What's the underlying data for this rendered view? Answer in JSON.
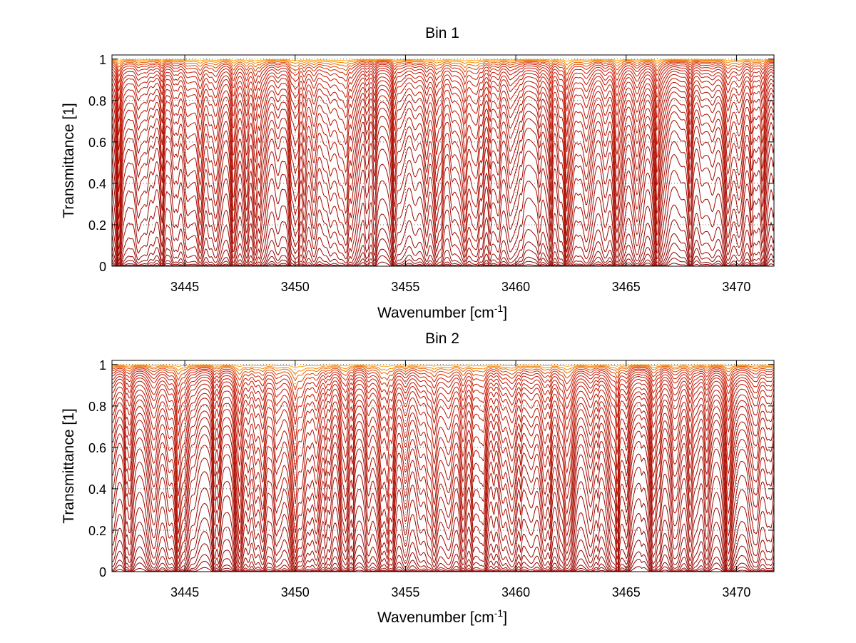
{
  "chart_data": [
    {
      "type": "line",
      "title": "Bin 1",
      "xlabel_main": "Wavenumber [cm",
      "xlabel_sup": "-1",
      "xlabel_end": "]",
      "ylabel": "Transmittance [1]",
      "xlim": [
        3441.7,
        3471.7
      ],
      "ylim": [
        0,
        1.02
      ],
      "xticks": [
        3445,
        3450,
        3455,
        3460,
        3465,
        3470
      ],
      "yticks": [
        0,
        0.2,
        0.4,
        0.6,
        0.8,
        1
      ],
      "ytick_labels": [
        "0",
        "0.2",
        "0.4",
        "0.6",
        "0.8",
        "1"
      ],
      "grid": "dotted",
      "legend": "none",
      "colors": {
        "low_transmittance": "#8b0000",
        "mid": "#cc1800",
        "high_transmittance": "#ffa500",
        "grid": "#666666"
      },
      "series_baselines": [
        0.003,
        0.012,
        0.025,
        0.05,
        0.08,
        0.13,
        0.19,
        0.27,
        0.35,
        0.43,
        0.5,
        0.56,
        0.62,
        0.67,
        0.71,
        0.75,
        0.79,
        0.82,
        0.85,
        0.875,
        0.9,
        0.92,
        0.935,
        0.95,
        0.962,
        0.972,
        0.98,
        0.986,
        0.991,
        0.995,
        0.998
      ],
      "strong_absorption_lines": [
        3442.0,
        3445.7,
        3447.2,
        3447.8,
        3448.2,
        3450.0,
        3452.3,
        3454.5,
        3456.4,
        3457.7,
        3462.3,
        3464.6,
        3466.4,
        3467.9,
        3469.6,
        3471.2
      ]
    },
    {
      "type": "line",
      "title": "Bin 2",
      "xlabel_main": "Wavenumber [cm",
      "xlabel_sup": "-1",
      "xlabel_end": "]",
      "ylabel": "Transmittance [1]",
      "xlim": [
        3441.7,
        3471.7
      ],
      "ylim": [
        0,
        1.02
      ],
      "xticks": [
        3445,
        3450,
        3455,
        3460,
        3465,
        3470
      ],
      "yticks": [
        0,
        0.2,
        0.4,
        0.6,
        0.8,
        1
      ],
      "ytick_labels": [
        "0",
        "0.2",
        "0.4",
        "0.6",
        "0.8",
        "1"
      ],
      "grid": "dotted",
      "legend": "none",
      "colors": {
        "low_transmittance": "#8b0000",
        "mid": "#cc1800",
        "high_transmittance": "#ffa500",
        "grid": "#666666"
      },
      "series_baselines": [
        0.004,
        0.015,
        0.03,
        0.06,
        0.1,
        0.15,
        0.21,
        0.28,
        0.36,
        0.43,
        0.5,
        0.56,
        0.61,
        0.66,
        0.7,
        0.74,
        0.78,
        0.81,
        0.84,
        0.87,
        0.895,
        0.915,
        0.93,
        0.945,
        0.958,
        0.968,
        0.977,
        0.984,
        0.99,
        0.994,
        0.998
      ],
      "strong_absorption_lines": [
        3442.5,
        3444.7,
        3447.5,
        3448.2,
        3450.0,
        3452.3,
        3454.4,
        3456.3,
        3457.6,
        3462.3,
        3464.6,
        3466.3,
        3467.9,
        3469.6
      ]
    }
  ]
}
